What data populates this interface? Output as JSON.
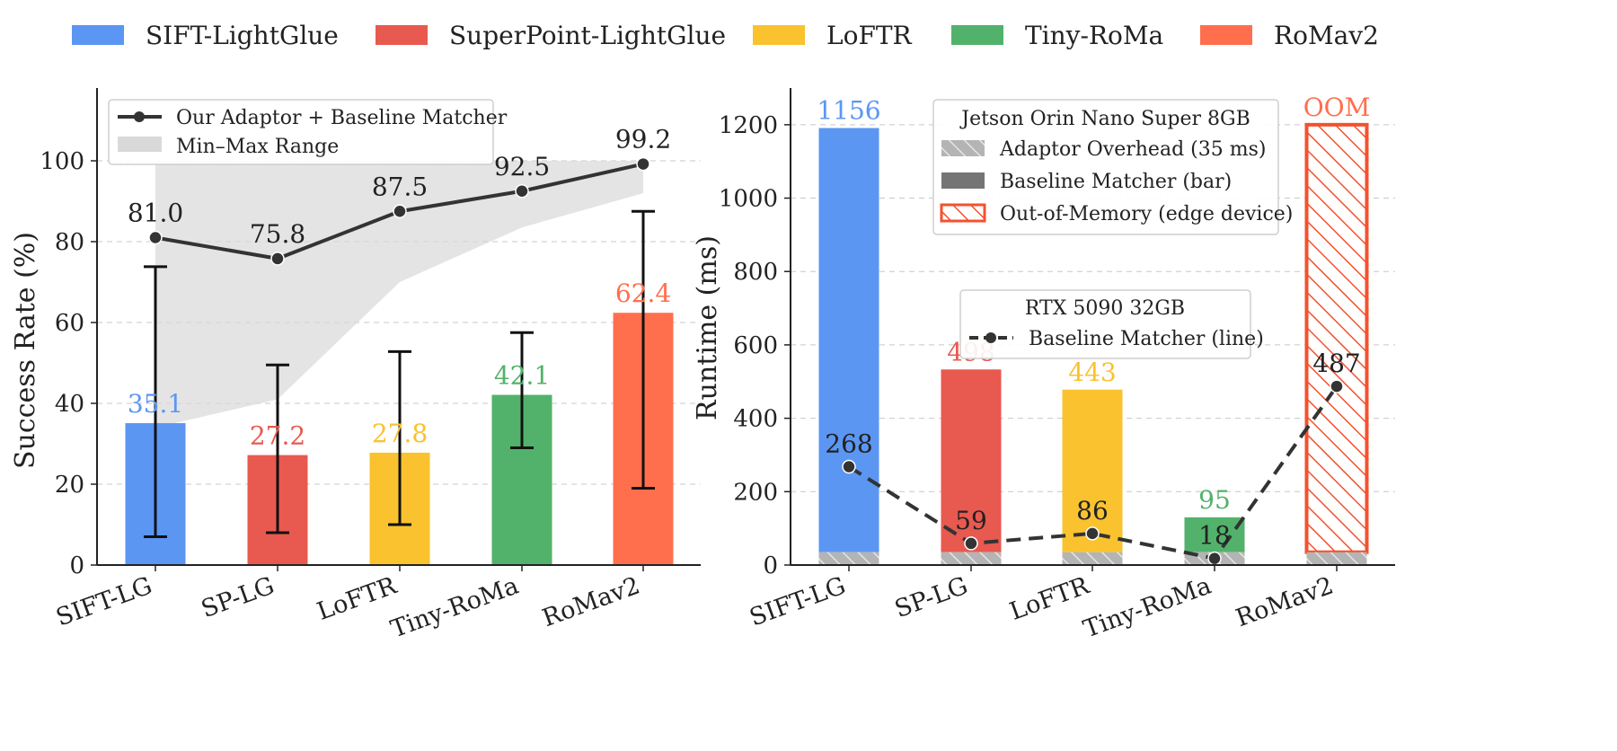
{
  "legend": {
    "entries": [
      {
        "label": "SIFT-LightGlue",
        "color": "#5b96f3"
      },
      {
        "label": "SuperPoint-LightGlue",
        "color": "#e8594f"
      },
      {
        "label": "LoFTR",
        "color": "#f9c22e"
      },
      {
        "label": "Tiny-RoMa",
        "color": "#52b26b"
      },
      {
        "label": "RoMav2",
        "color": "#ff6f4d"
      }
    ]
  },
  "chart_data": [
    {
      "type": "bar",
      "categories": [
        "SIFT-LG",
        "SP-LG",
        "LoFTR",
        "Tiny-RoMa",
        "RoMav2"
      ],
      "colors": [
        "#5b96f3",
        "#e8594f",
        "#f9c22e",
        "#52b26b",
        "#ff6f4d"
      ],
      "values": [
        35.1,
        27.2,
        27.8,
        42.1,
        62.4
      ],
      "value_labels": [
        "35.1",
        "27.2",
        "27.8",
        "42.1",
        "62.4"
      ],
      "error_bars": [
        [
          7,
          73.8
        ],
        [
          8,
          49.5
        ],
        [
          10,
          52.8
        ],
        [
          29,
          57.5
        ],
        [
          19,
          87.5
        ]
      ],
      "line": {
        "name": "Our Adaptor + Baseline Matcher",
        "values": [
          81.0,
          75.8,
          87.5,
          92.5,
          99.2
        ],
        "value_labels": [
          "81.0",
          "75.8",
          "87.5",
          "92.5",
          "99.2"
        ]
      },
      "range_band": {
        "name": "Min–Max Range",
        "min": [
          34,
          41,
          70,
          83.5,
          92
        ],
        "max": [
          100,
          100,
          100,
          100,
          100
        ]
      },
      "ylabel": "Success Rate (%)",
      "ylim": [
        0,
        118
      ],
      "yticks": [
        0,
        20,
        40,
        60,
        80,
        100
      ],
      "legend_position": "top-left"
    },
    {
      "type": "bar",
      "categories": [
        "SIFT-LG",
        "SP-LG",
        "LoFTR",
        "Tiny-RoMa",
        "RoMav2"
      ],
      "colors": [
        "#5b96f3",
        "#e8594f",
        "#f9c22e",
        "#52b26b",
        "#ff6f4d"
      ],
      "values": [
        1156,
        498,
        443,
        95,
        1200
      ],
      "value_labels": [
        "1156",
        "498",
        "443",
        "95",
        "OOM"
      ],
      "oom": [
        false,
        false,
        false,
        false,
        true
      ],
      "adaptor_overhead": 35,
      "line": {
        "name": "Baseline Matcher (line)",
        "values": [
          268,
          59,
          86,
          18,
          487
        ],
        "value_labels": [
          "268",
          "59",
          "86",
          "18",
          "487"
        ]
      },
      "ylabel": "Runtime (ms)",
      "ylim": [
        0,
        1300
      ],
      "yticks": [
        0,
        200,
        400,
        600,
        800,
        1000,
        1200
      ],
      "legend_edge": {
        "title": "Jetson Orin Nano Super 8GB",
        "entries": [
          "Adaptor Overhead (35 ms)",
          "Baseline Matcher (bar)",
          "Out-of-Memory (edge device)"
        ]
      },
      "legend_gpu": {
        "title": "RTX 5090 32GB",
        "entries": [
          "Baseline Matcher (line)"
        ]
      }
    }
  ]
}
